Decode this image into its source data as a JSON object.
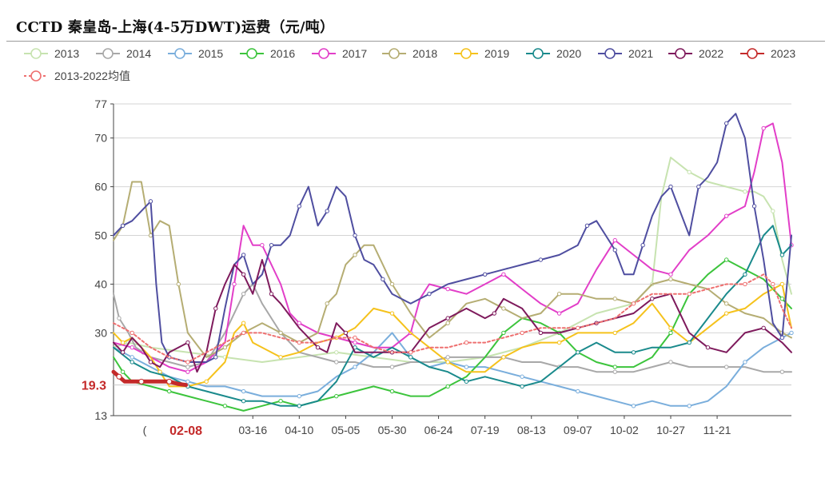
{
  "chart_data": {
    "type": "line",
    "title": "CCTD 秦皇岛-上海(4-5万DWT)运费（元/吨）",
    "xlabel": "",
    "ylabel": "",
    "ylim": [
      13,
      77
    ],
    "y_ticks": [
      13,
      30,
      40,
      50,
      60,
      70,
      77
    ],
    "x_ticks": [
      "03-16",
      "04-10",
      "05-05",
      "05-30",
      "06-24",
      "07-19",
      "08-13",
      "09-07",
      "10-02",
      "10-27",
      "11-21"
    ],
    "x_tick_positions": [
      75,
      100,
      125,
      150,
      175,
      200,
      225,
      250,
      275,
      300,
      325
    ],
    "highlight_x": {
      "label": "02-08",
      "x": 39
    },
    "highlight_y": {
      "label": "19.3",
      "value": 19.3
    },
    "grid": true,
    "legend_position": "top",
    "x_range": [
      0,
      365
    ],
    "series": [
      {
        "name": "2013",
        "color": "#c7e3b0",
        "x": [
          0,
          8,
          20,
          40,
          60,
          80,
          100,
          120,
          140,
          160,
          180,
          200,
          220,
          240,
          260,
          280,
          290,
          295,
          300,
          310,
          320,
          330,
          340,
          345,
          350,
          355,
          360,
          365
        ],
        "values": [
          27,
          28,
          27,
          26,
          25,
          24,
          25,
          26,
          25,
          24,
          24,
          25,
          27,
          30,
          34,
          36,
          40,
          58,
          66,
          63,
          61,
          60,
          59,
          59,
          58,
          55,
          45,
          38
        ]
      },
      {
        "name": "2014",
        "color": "#a8a8a8",
        "x": [
          0,
          3,
          8,
          12,
          16,
          20,
          30,
          40,
          50,
          60,
          70,
          75,
          80,
          90,
          100,
          110,
          120,
          130,
          140,
          150,
          160,
          170,
          180,
          190,
          200,
          210,
          220,
          230,
          240,
          250,
          260,
          270,
          280,
          290,
          300,
          310,
          320,
          330,
          340,
          350,
          360,
          365
        ],
        "values": [
          38,
          33,
          30,
          27,
          26,
          25,
          24,
          23,
          24,
          30,
          38,
          40,
          36,
          30,
          26,
          25,
          24,
          24,
          23,
          23,
          24,
          24,
          25,
          25,
          25,
          25,
          24,
          24,
          23,
          23,
          22,
          22,
          22,
          23,
          24,
          23,
          23,
          23,
          23,
          22,
          22,
          22
        ]
      },
      {
        "name": "2015",
        "color": "#7aaedc",
        "x": [
          0,
          10,
          20,
          30,
          40,
          50,
          60,
          70,
          80,
          90,
          100,
          110,
          120,
          130,
          140,
          150,
          160,
          170,
          180,
          190,
          200,
          210,
          220,
          230,
          240,
          250,
          260,
          270,
          280,
          290,
          300,
          310,
          320,
          330,
          340,
          350,
          360,
          365
        ],
        "values": [
          27,
          25,
          23,
          21,
          20,
          19,
          19,
          18,
          17,
          17,
          17,
          18,
          21,
          23,
          26,
          30,
          25,
          23,
          24,
          23,
          23,
          22,
          21,
          20,
          19,
          18,
          17,
          16,
          15,
          16,
          15,
          15,
          16,
          19,
          24,
          27,
          29,
          30
        ]
      },
      {
        "name": "2016",
        "color": "#3cc43c",
        "x": [
          0,
          5,
          10,
          20,
          30,
          40,
          50,
          60,
          70,
          80,
          90,
          100,
          110,
          120,
          130,
          140,
          150,
          160,
          170,
          180,
          190,
          200,
          210,
          220,
          230,
          240,
          250,
          260,
          270,
          280,
          290,
          300,
          310,
          320,
          330,
          340,
          350,
          360,
          365
        ],
        "values": [
          25,
          22,
          20,
          19,
          18,
          17,
          16,
          15,
          14,
          15,
          16,
          15,
          16,
          17,
          18,
          19,
          18,
          17,
          17,
          19,
          21,
          25,
          30,
          33,
          32,
          30,
          26,
          24,
          23,
          23,
          25,
          30,
          38,
          42,
          45,
          43,
          41,
          37,
          35
        ]
      },
      {
        "name": "2017",
        "color": "#e23ec8",
        "x": [
          0,
          10,
          20,
          30,
          40,
          50,
          60,
          65,
          70,
          75,
          80,
          90,
          95,
          100,
          110,
          120,
          130,
          140,
          150,
          160,
          165,
          170,
          180,
          190,
          200,
          210,
          220,
          230,
          240,
          250,
          260,
          270,
          280,
          290,
          300,
          310,
          320,
          330,
          340,
          345,
          350,
          355,
          360,
          365
        ],
        "values": [
          28,
          27,
          25,
          23,
          22,
          24,
          28,
          40,
          52,
          48,
          48,
          40,
          34,
          32,
          30,
          29,
          28,
          27,
          27,
          30,
          37,
          40,
          39,
          38,
          40,
          42,
          39,
          36,
          34,
          36,
          43,
          49,
          46,
          43,
          42,
          47,
          50,
          54,
          56,
          63,
          72,
          73,
          65,
          48
        ]
      },
      {
        "name": "2018",
        "color": "#b5ad73",
        "x": [
          0,
          5,
          10,
          15,
          20,
          25,
          30,
          35,
          40,
          50,
          60,
          70,
          80,
          90,
          100,
          110,
          115,
          120,
          125,
          130,
          135,
          140,
          150,
          160,
          170,
          180,
          190,
          200,
          210,
          220,
          230,
          240,
          250,
          260,
          270,
          280,
          290,
          300,
          310,
          320,
          330,
          340,
          350,
          360,
          365
        ],
        "values": [
          49,
          52,
          61,
          61,
          50,
          53,
          52,
          40,
          30,
          25,
          27,
          30,
          32,
          30,
          28,
          30,
          36,
          38,
          44,
          46,
          48,
          48,
          40,
          34,
          29,
          32,
          36,
          37,
          35,
          33,
          34,
          38,
          38,
          37,
          37,
          36,
          40,
          41,
          40,
          39,
          36,
          34,
          33,
          30,
          29
        ]
      },
      {
        "name": "2019",
        "color": "#f5c21c",
        "x": [
          0,
          5,
          10,
          20,
          25,
          30,
          40,
          50,
          60,
          65,
          70,
          75,
          80,
          90,
          100,
          110,
          120,
          130,
          140,
          150,
          160,
          170,
          180,
          190,
          200,
          210,
          220,
          230,
          240,
          250,
          260,
          270,
          280,
          290,
          300,
          310,
          320,
          330,
          340,
          350,
          360,
          365
        ],
        "values": [
          30,
          28,
          29,
          25,
          22,
          19,
          19,
          20,
          24,
          30,
          32,
          28,
          27,
          25,
          26,
          28,
          29,
          31,
          35,
          34,
          30,
          27,
          24,
          22,
          22,
          25,
          27,
          28,
          28,
          30,
          30,
          30,
          32,
          36,
          31,
          28,
          31,
          34,
          35,
          38,
          40,
          31
        ]
      },
      {
        "name": "2020",
        "color": "#1a8a8c",
        "x": [
          0,
          10,
          20,
          30,
          40,
          50,
          60,
          70,
          80,
          90,
          100,
          110,
          120,
          130,
          140,
          150,
          160,
          170,
          180,
          190,
          200,
          210,
          220,
          230,
          240,
          250,
          260,
          270,
          280,
          290,
          300,
          310,
          320,
          330,
          340,
          350,
          355,
          360,
          365
        ],
        "values": [
          27,
          24,
          22,
          21,
          19,
          18,
          17,
          16,
          16,
          15,
          15,
          16,
          20,
          27,
          25,
          27,
          25,
          23,
          22,
          20,
          21,
          20,
          19,
          20,
          23,
          26,
          28,
          26,
          26,
          27,
          27,
          28,
          33,
          38,
          42,
          50,
          52,
          46,
          48
        ]
      },
      {
        "name": "2021",
        "color": "#4f4ea0",
        "x": [
          0,
          5,
          10,
          15,
          20,
          23,
          26,
          30,
          40,
          50,
          55,
          60,
          65,
          70,
          75,
          80,
          85,
          90,
          95,
          100,
          105,
          110,
          115,
          120,
          125,
          130,
          135,
          140,
          145,
          150,
          160,
          170,
          180,
          190,
          200,
          210,
          220,
          230,
          240,
          250,
          255,
          260,
          265,
          270,
          275,
          280,
          285,
          290,
          295,
          300,
          305,
          310,
          315,
          320,
          325,
          330,
          335,
          340,
          345,
          350,
          355,
          360,
          365
        ],
        "values": [
          50,
          52,
          53,
          55,
          57,
          40,
          28,
          25,
          24,
          24,
          25,
          35,
          44,
          46,
          40,
          42,
          48,
          48,
          50,
          56,
          60,
          52,
          55,
          60,
          58,
          50,
          45,
          44,
          41,
          38,
          36,
          38,
          40,
          41,
          42,
          43,
          44,
          45,
          46,
          48,
          52,
          53,
          50,
          47,
          42,
          42,
          48,
          54,
          58,
          60,
          55,
          50,
          60,
          62,
          65,
          73,
          75,
          70,
          56,
          45,
          32,
          29,
          50
        ]
      },
      {
        "name": "2022",
        "color": "#7e1a5c",
        "x": [
          0,
          5,
          10,
          15,
          20,
          25,
          30,
          40,
          45,
          50,
          55,
          60,
          65,
          70,
          75,
          80,
          85,
          90,
          100,
          110,
          115,
          120,
          125,
          130,
          140,
          150,
          160,
          170,
          180,
          190,
          200,
          205,
          210,
          220,
          230,
          240,
          250,
          260,
          270,
          280,
          290,
          300,
          310,
          320,
          330,
          340,
          350,
          360,
          365
        ],
        "values": [
          28,
          26,
          29,
          27,
          24,
          23,
          26,
          28,
          22,
          26,
          35,
          40,
          44,
          42,
          38,
          45,
          38,
          36,
          31,
          27,
          26,
          32,
          30,
          26,
          26,
          26,
          26,
          31,
          33,
          35,
          33,
          34,
          37,
          35,
          30,
          30,
          31,
          32,
          33,
          34,
          37,
          38,
          30,
          27,
          26,
          30,
          31,
          28,
          26
        ]
      },
      {
        "name": "2023",
        "color": "#c42a2a",
        "x": [
          0,
          3,
          6,
          10,
          15,
          20,
          25,
          30,
          35,
          39
        ],
        "values": [
          22,
          21,
          20,
          20,
          20,
          20,
          20,
          20,
          19.5,
          19.3
        ]
      },
      {
        "name": "2013-2022均值",
        "color": "#ee7070",
        "dashed": true,
        "x": [
          0,
          10,
          20,
          30,
          40,
          50,
          60,
          70,
          80,
          90,
          100,
          110,
          120,
          130,
          140,
          150,
          160,
          170,
          180,
          190,
          200,
          210,
          220,
          230,
          240,
          250,
          260,
          270,
          280,
          290,
          300,
          310,
          320,
          330,
          340,
          345,
          350,
          355,
          360,
          365
        ],
        "values": [
          32,
          30,
          27,
          25,
          24,
          26,
          28,
          30,
          30,
          29,
          28,
          28,
          29,
          29,
          27,
          26,
          26,
          27,
          27,
          28,
          28,
          29,
          30,
          31,
          31,
          31,
          32,
          33,
          36,
          38,
          38,
          38,
          39,
          40,
          40,
          41,
          42,
          40,
          35,
          31
        ]
      }
    ]
  }
}
